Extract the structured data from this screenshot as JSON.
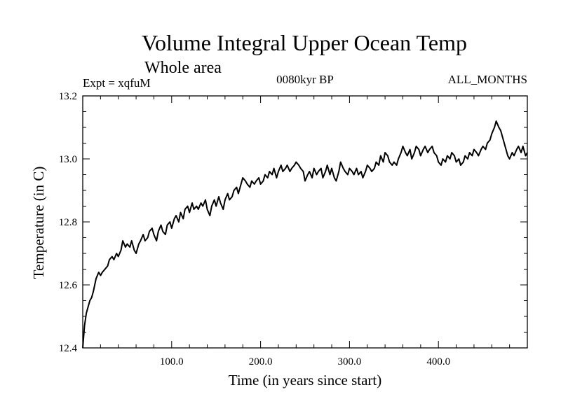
{
  "chart_data": {
    "type": "line",
    "title": "Volume Integral Upper Ocean Temp",
    "subtitle": "Whole area",
    "expt_label": "Expt = xqfuM",
    "period_label": "0080kyr BP",
    "months_label": "ALL_MONTHS",
    "xlabel": "Time (in years since start)",
    "ylabel": "Temperature (in C)",
    "xlim": [
      0,
      500
    ],
    "ylim": [
      12.4,
      13.2
    ],
    "xticks": [
      100,
      200,
      300,
      400
    ],
    "xtick_labels": [
      "100.0",
      "200.0",
      "300.0",
      "400.0"
    ],
    "yticks": [
      12.4,
      12.6,
      12.8,
      13.0,
      13.2
    ],
    "ytick_labels": [
      "12.4",
      "12.6",
      "12.8",
      "13.0",
      "13.2"
    ],
    "series": [
      {
        "name": "Volume integral upper ocean temperature",
        "x": [
          0,
          2,
          4,
          6,
          8,
          10,
          12,
          15,
          18,
          20,
          22,
          25,
          28,
          30,
          33,
          35,
          38,
          40,
          43,
          45,
          48,
          50,
          53,
          55,
          58,
          60,
          63,
          65,
          68,
          70,
          73,
          75,
          78,
          80,
          83,
          85,
          88,
          90,
          93,
          95,
          98,
          100,
          103,
          105,
          108,
          110,
          113,
          115,
          118,
          120,
          123,
          125,
          128,
          130,
          133,
          135,
          138,
          140,
          143,
          145,
          148,
          150,
          153,
          155,
          158,
          160,
          163,
          165,
          168,
          170,
          173,
          175,
          178,
          180,
          183,
          185,
          188,
          190,
          193,
          195,
          198,
          200,
          203,
          205,
          208,
          210,
          213,
          215,
          218,
          220,
          223,
          225,
          228,
          230,
          233,
          235,
          238,
          240,
          243,
          245,
          248,
          250,
          253,
          255,
          258,
          260,
          263,
          265,
          268,
          270,
          273,
          275,
          278,
          280,
          283,
          285,
          288,
          290,
          293,
          295,
          298,
          300,
          303,
          305,
          308,
          310,
          313,
          315,
          318,
          320,
          323,
          325,
          328,
          330,
          333,
          335,
          338,
          340,
          343,
          345,
          348,
          350,
          353,
          355,
          358,
          360,
          363,
          365,
          368,
          370,
          373,
          375,
          378,
          380,
          383,
          385,
          388,
          390,
          393,
          395,
          398,
          400,
          403,
          405,
          408,
          410,
          413,
          415,
          418,
          420,
          423,
          425,
          428,
          430,
          433,
          435,
          438,
          440,
          443,
          445,
          448,
          450,
          453,
          455,
          458,
          460,
          463,
          465,
          468,
          470,
          473,
          475,
          478,
          480,
          483,
          485,
          488,
          490,
          493,
          495,
          498,
          500
        ],
        "values": [
          12.4,
          12.47,
          12.51,
          12.53,
          12.55,
          12.56,
          12.58,
          12.62,
          12.64,
          12.63,
          12.64,
          12.65,
          12.66,
          12.68,
          12.69,
          12.68,
          12.7,
          12.69,
          12.71,
          12.74,
          12.72,
          12.73,
          12.72,
          12.74,
          12.71,
          12.7,
          12.73,
          12.74,
          12.76,
          12.74,
          12.75,
          12.77,
          12.78,
          12.76,
          12.74,
          12.77,
          12.79,
          12.77,
          12.76,
          12.79,
          12.8,
          12.78,
          12.81,
          12.82,
          12.8,
          12.83,
          12.81,
          12.84,
          12.85,
          12.83,
          12.86,
          12.84,
          12.85,
          12.84,
          12.86,
          12.85,
          12.87,
          12.84,
          12.82,
          12.85,
          12.87,
          12.85,
          12.88,
          12.86,
          12.84,
          12.87,
          12.89,
          12.87,
          12.88,
          12.9,
          12.91,
          12.89,
          12.92,
          12.94,
          12.93,
          12.92,
          12.91,
          12.93,
          12.92,
          12.93,
          12.94,
          12.92,
          12.93,
          12.95,
          12.94,
          12.96,
          12.95,
          12.97,
          12.94,
          12.96,
          12.98,
          12.96,
          12.97,
          12.98,
          12.96,
          12.97,
          12.98,
          12.99,
          12.98,
          12.97,
          12.96,
          12.93,
          12.95,
          12.96,
          12.94,
          12.97,
          12.95,
          12.96,
          12.97,
          12.94,
          12.96,
          12.98,
          12.95,
          12.97,
          12.94,
          12.93,
          12.96,
          12.99,
          12.97,
          12.96,
          12.95,
          12.97,
          12.96,
          12.95,
          12.97,
          12.95,
          12.96,
          12.94,
          12.96,
          12.98,
          12.97,
          12.96,
          12.97,
          12.99,
          12.98,
          13.01,
          12.99,
          13.02,
          13.01,
          12.99,
          12.98,
          12.99,
          12.98,
          13.0,
          13.02,
          13.04,
          13.02,
          13.01,
          13.03,
          13.0,
          13.02,
          13.04,
          13.03,
          13.01,
          13.03,
          13.04,
          13.02,
          13.03,
          13.04,
          13.02,
          13.01,
          12.99,
          12.98,
          13.0,
          12.99,
          13.01,
          13.0,
          13.02,
          13.01,
          12.99,
          13.0,
          12.98,
          12.99,
          13.01,
          13.0,
          13.02,
          13.01,
          13.03,
          13.02,
          13.01,
          13.03,
          13.04,
          13.03,
          13.05,
          13.06,
          13.08,
          13.1,
          13.12,
          13.1,
          13.09,
          13.06,
          13.04,
          13.01,
          13.0,
          13.02,
          13.01,
          13.03,
          13.04,
          13.02,
          13.04,
          13.01,
          13.02
        ]
      }
    ]
  }
}
